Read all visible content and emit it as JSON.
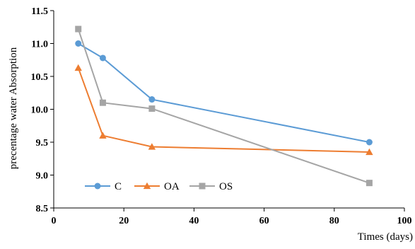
{
  "chart_data": {
    "type": "line",
    "title": "",
    "xlabel": "Times (days)",
    "ylabel": "precentage water Absorption",
    "xlim": [
      0,
      100
    ],
    "ylim": [
      8.5,
      11.5
    ],
    "xticks": [
      0,
      20,
      40,
      60,
      80,
      100
    ],
    "yticks": [
      8.5,
      9.0,
      9.5,
      10.0,
      10.5,
      11.0,
      11.5
    ],
    "ytick_labels": [
      "8.5",
      "9.0",
      "9.5",
      "10.0",
      "10.5",
      "11.0",
      "11.5"
    ],
    "grid": false,
    "legend_position": "bottom-left",
    "series": [
      {
        "name": "C",
        "color": "#5b9bd5",
        "marker": "circle",
        "x": [
          7,
          14,
          28,
          90
        ],
        "y": [
          11.0,
          10.78,
          10.15,
          9.5
        ]
      },
      {
        "name": "OA",
        "color": "#ed7d31",
        "marker": "triangle",
        "x": [
          7,
          14,
          28,
          90
        ],
        "y": [
          10.63,
          9.6,
          9.43,
          9.35
        ]
      },
      {
        "name": "OS",
        "color": "#a5a5a5",
        "marker": "square",
        "x": [
          7,
          14,
          28,
          90
        ],
        "y": [
          11.22,
          10.1,
          10.01,
          8.88
        ]
      }
    ]
  }
}
